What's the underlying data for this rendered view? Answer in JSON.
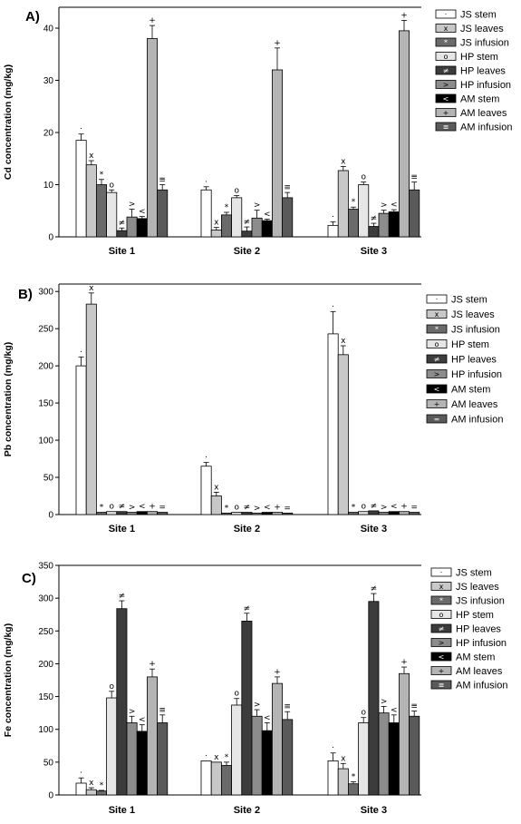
{
  "chart_data": [
    {
      "type": "bar",
      "panel_label": "A)",
      "ylabel": "Cd concentration (mg/kg)",
      "ylim": [
        0,
        44
      ],
      "yticks": [
        0,
        10,
        20,
        30,
        40
      ],
      "categories": [
        "Site 1",
        "Site 2",
        "Site 3"
      ],
      "legend_position": "right",
      "series": [
        {
          "name": "JS stem",
          "symbol": "·",
          "color": "#ffffff",
          "values": [
            18.5,
            9.0,
            2.2
          ],
          "errors": [
            1.2,
            0.6,
            0.7
          ]
        },
        {
          "name": "JS leaves",
          "symbol": "x",
          "color": "#c8c8c8",
          "values": [
            13.8,
            1.3,
            12.7
          ],
          "errors": [
            0.8,
            0.5,
            0.8
          ]
        },
        {
          "name": "JS infusion",
          "symbol": "*",
          "color": "#6a6a6a",
          "values": [
            10.0,
            4.2,
            5.3
          ],
          "errors": [
            1.0,
            0.5,
            0.4
          ]
        },
        {
          "name": "HP stem",
          "symbol": "o",
          "color": "#e6e6e6",
          "values": [
            8.5,
            7.5,
            10.0
          ],
          "errors": [
            0.5,
            0.4,
            0.5
          ]
        },
        {
          "name": "HP leaves",
          "symbol": "≠",
          "color": "#3c3c3c",
          "values": [
            1.2,
            1.1,
            2.0
          ],
          "errors": [
            0.5,
            0.8,
            0.6
          ]
        },
        {
          "name": "HP infusion",
          "symbol": ">",
          "color": "#8c8c8c",
          "values": [
            3.8,
            3.6,
            4.5
          ],
          "errors": [
            1.5,
            1.5,
            0.6
          ]
        },
        {
          "name": "AM stem",
          "symbol": "<",
          "color": "#000000",
          "values": [
            3.5,
            3.1,
            4.8
          ],
          "errors": [
            0.4,
            0.3,
            0.4
          ]
        },
        {
          "name": "AM leaves",
          "symbol": "+",
          "color": "#b4b4b4",
          "values": [
            38.0,
            32.0,
            39.5
          ],
          "errors": [
            2.5,
            4.2,
            2.0
          ]
        },
        {
          "name": "AM infusion",
          "symbol": "≡",
          "color": "#5a5a5a",
          "values": [
            9.0,
            7.5,
            9.0
          ],
          "errors": [
            1.0,
            1.0,
            1.5
          ]
        }
      ]
    },
    {
      "type": "bar",
      "panel_label": "B)",
      "ylabel": "Pb concentration (mg/kg)",
      "ylim": [
        0,
        310
      ],
      "yticks": [
        0,
        50,
        100,
        150,
        200,
        250,
        300
      ],
      "categories": [
        "Site 1",
        "Site 2",
        "Site 3"
      ],
      "legend_position": "right",
      "series": [
        {
          "name": "JS stem",
          "symbol": "·",
          "color": "#ffffff",
          "values": [
            200,
            65,
            243
          ],
          "errors": [
            12,
            5,
            30
          ]
        },
        {
          "name": "JS leaves",
          "symbol": "x",
          "color": "#c8c8c8",
          "values": [
            283,
            25,
            215
          ],
          "errors": [
            15,
            5,
            12
          ]
        },
        {
          "name": "JS infusion",
          "symbol": "*",
          "color": "#6a6a6a",
          "values": [
            3,
            2,
            3
          ],
          "errors": [
            0,
            0,
            0
          ]
        },
        {
          "name": "HP stem",
          "symbol": "o",
          "color": "#e6e6e6",
          "values": [
            4,
            3,
            4
          ],
          "errors": [
            0,
            0,
            0
          ]
        },
        {
          "name": "HP leaves",
          "symbol": "≠",
          "color": "#3c3c3c",
          "values": [
            4,
            3,
            5
          ],
          "errors": [
            0,
            0,
            0
          ]
        },
        {
          "name": "HP infusion",
          "symbol": ">",
          "color": "#8c8c8c",
          "values": [
            3,
            2,
            3
          ],
          "errors": [
            0,
            0,
            0
          ]
        },
        {
          "name": "AM stem",
          "symbol": "<",
          "color": "#000000",
          "values": [
            4,
            3,
            4
          ],
          "errors": [
            0,
            0,
            0
          ]
        },
        {
          "name": "AM leaves",
          "symbol": "+",
          "color": "#b4b4b4",
          "values": [
            4,
            3,
            4
          ],
          "errors": [
            0,
            0,
            0
          ]
        },
        {
          "name": "AM infusion",
          "symbol": "=",
          "color": "#5a5a5a",
          "values": [
            3,
            2,
            3
          ],
          "errors": [
            0,
            0,
            0
          ]
        }
      ]
    },
    {
      "type": "bar",
      "panel_label": "C)",
      "ylabel": "Fe concentration (mg/kg)",
      "ylim": [
        0,
        350
      ],
      "yticks": [
        0,
        50,
        100,
        150,
        200,
        250,
        300,
        350
      ],
      "categories": [
        "Site 1",
        "Site 2",
        "Site 3"
      ],
      "legend_position": "right",
      "series": [
        {
          "name": "JS stem",
          "symbol": "·",
          "color": "#ffffff",
          "values": [
            18,
            52,
            52
          ],
          "errors": [
            8,
            0,
            12
          ]
        },
        {
          "name": "JS leaves",
          "symbol": "x",
          "color": "#c8c8c8",
          "values": [
            8,
            50,
            40
          ],
          "errors": [
            3,
            0,
            8
          ]
        },
        {
          "name": "JS infusion",
          "symbol": "*",
          "color": "#6a6a6a",
          "values": [
            6,
            45,
            17
          ],
          "errors": [
            1,
            5,
            3
          ]
        },
        {
          "name": "HP stem",
          "symbol": "o",
          "color": "#e6e6e6",
          "values": [
            148,
            137,
            110
          ],
          "errors": [
            10,
            10,
            8
          ]
        },
        {
          "name": "HP leaves",
          "symbol": "≠",
          "color": "#3c3c3c",
          "values": [
            284,
            265,
            295
          ],
          "errors": [
            12,
            12,
            12
          ]
        },
        {
          "name": "HP infusion",
          "symbol": ">",
          "color": "#8c8c8c",
          "values": [
            110,
            120,
            125
          ],
          "errors": [
            10,
            10,
            10
          ]
        },
        {
          "name": "AM stem",
          "symbol": "<",
          "color": "#000000",
          "values": [
            97,
            98,
            110
          ],
          "errors": [
            10,
            12,
            12
          ]
        },
        {
          "name": "AM leaves",
          "symbol": "+",
          "color": "#b4b4b4",
          "values": [
            180,
            170,
            185
          ],
          "errors": [
            12,
            10,
            10
          ]
        },
        {
          "name": "AM infusion",
          "symbol": "≡",
          "color": "#5a5a5a",
          "values": [
            110,
            115,
            120
          ],
          "errors": [
            12,
            12,
            8
          ]
        }
      ]
    }
  ]
}
